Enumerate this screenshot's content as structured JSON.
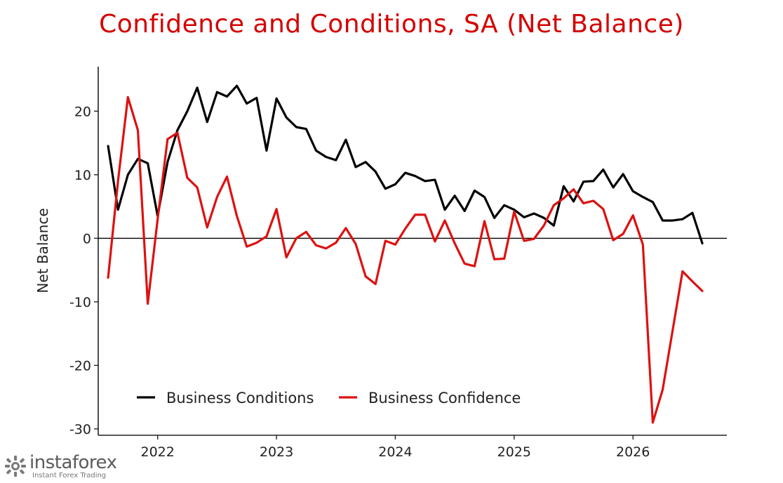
{
  "chart_data": {
    "type": "line",
    "title": "Confidence and Conditions, SA (Net Balance)",
    "ylabel": "Net Balance",
    "xlabel": "",
    "ylim": [
      -31,
      27
    ],
    "yticks": [
      -30,
      -20,
      -10,
      0,
      10,
      20
    ],
    "xticks": [
      "2022",
      "2023",
      "2024",
      "2025",
      "2026"
    ],
    "xlim": [
      2021.5,
      2026.79
    ],
    "zero_line": true,
    "grid": false,
    "legend": "bottom-left",
    "colors": {
      "title": "#d40000",
      "Business Conditions": "#000000",
      "Business Confidence": "#dd1111"
    },
    "x_start": "2021-08",
    "series": [
      {
        "name": "Business Conditions",
        "values": [
          14.5,
          4.5,
          10,
          12.5,
          11.8,
          3.5,
          12,
          17,
          20,
          23.7,
          18.3,
          23,
          22.3,
          24,
          21.2,
          22.1,
          13.8,
          22,
          19,
          17.5,
          17.2,
          13.8,
          12.8,
          12.3,
          15.5,
          11.2,
          12,
          10.5,
          7.8,
          8.5,
          10.3,
          9.8,
          9,
          9.2,
          4.5,
          6.7,
          4.3,
          7.5,
          6.5,
          3.2,
          5.2,
          4.5,
          3.3,
          3.9,
          3.2,
          2,
          8.2,
          5.8,
          8.9,
          9,
          10.8,
          8,
          10.1,
          7.4,
          6.5,
          5.7,
          2.8,
          2.8,
          3,
          4,
          -0.8
        ]
      },
      {
        "name": "Business Confidence",
        "values": [
          -6.2,
          9,
          22.2,
          17,
          -10.3,
          3,
          15.6,
          16.6,
          9.5,
          8,
          1.7,
          6.5,
          9.7,
          3.5,
          -1.3,
          -0.7,
          0.3,
          4.6,
          -3,
          0,
          1,
          -1.1,
          -1.6,
          -0.7,
          1.6,
          -0.9,
          -6,
          -7.2,
          -0.4,
          -1,
          1.5,
          3.7,
          3.7,
          -0.5,
          2.8,
          -0.8,
          -4,
          -4.4,
          2.7,
          -3.3,
          -3.2,
          4.2,
          -0.4,
          -0.1,
          2,
          5.2,
          6.3,
          7.7,
          5.5,
          5.9,
          4.6,
          -0.3,
          0.7,
          3.6,
          -1,
          -29,
          -23.8,
          -14.5,
          -5.2,
          -6.8,
          -8.3
        ]
      }
    ]
  },
  "watermark": {
    "brand": "instaforex",
    "tagline": "Instant Forex Trading"
  }
}
